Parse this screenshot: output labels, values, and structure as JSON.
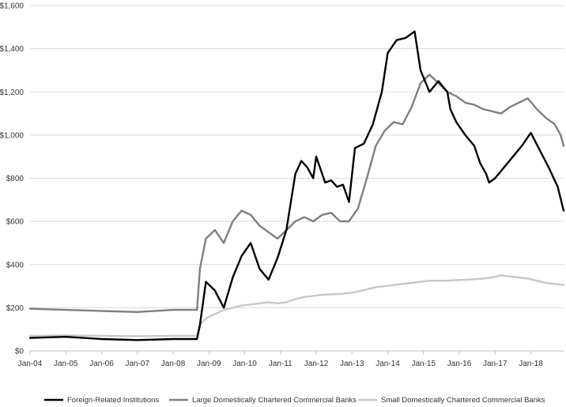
{
  "chart_data": {
    "type": "line",
    "x_tick_labels": [
      "Jan-04",
      "Jan-05",
      "Jan-06",
      "Jan-07",
      "Jan-08",
      "Jan-09",
      "Jan-10",
      "Jan-11",
      "Jan-12",
      "Jan-13",
      "Jan-14",
      "Jan-15",
      "Jan-16",
      "Jan-17",
      "Jan-18"
    ],
    "y_tick_labels": [
      "$0",
      "$200",
      "$400",
      "$600",
      "$800",
      "$1,000",
      "$1,200",
      "$1,400",
      "$1,600"
    ],
    "ylim": [
      0,
      1600
    ],
    "xlim": [
      "Jan-04",
      "Dec-18"
    ],
    "grid": "horizontal",
    "legend_position": "bottom",
    "series": [
      {
        "name": "Foreign-Related Institutions",
        "color": "#000000",
        "x": [
          "Jan-04",
          "Jan-05",
          "Jan-06",
          "Jan-07",
          "Jan-08",
          "Sep-08",
          "Oct-08",
          "Dec-08",
          "Mar-09",
          "Jun-09",
          "Sep-09",
          "Dec-09",
          "Mar-10",
          "Jun-10",
          "Sep-10",
          "Dec-10",
          "Mar-11",
          "Jun-11",
          "Aug-11",
          "Oct-11",
          "Dec-11",
          "Jan-12",
          "Feb-12",
          "Apr-12",
          "Jun-12",
          "Aug-12",
          "Oct-12",
          "Dec-12",
          "Feb-13",
          "May-13",
          "Aug-13",
          "Nov-13",
          "Jan-14",
          "Apr-14",
          "Jul-14",
          "Oct-14",
          "Dec-14",
          "Mar-15",
          "Jun-15",
          "Sep-15",
          "Oct-15",
          "Dec-15",
          "Mar-16",
          "Jun-16",
          "Aug-16",
          "Oct-16",
          "Nov-16",
          "Jan-17",
          "Apr-17",
          "Jul-17",
          "Oct-17",
          "Jan-18",
          "Apr-18",
          "Jul-18",
          "Oct-18",
          "Dec-18"
        ],
        "values": [
          60,
          65,
          55,
          50,
          55,
          55,
          120,
          320,
          280,
          200,
          340,
          440,
          500,
          380,
          330,
          430,
          560,
          820,
          880,
          850,
          800,
          900,
          860,
          780,
          790,
          760,
          770,
          690,
          940,
          960,
          1050,
          1200,
          1380,
          1440,
          1450,
          1480,
          1300,
          1200,
          1250,
          1200,
          1120,
          1060,
          1000,
          950,
          870,
          820,
          780,
          800,
          850,
          900,
          950,
          1010,
          930,
          850,
          760,
          650
        ]
      },
      {
        "name": "Large Domestically Chartered Commercial Banks",
        "color": "#7f7f7f",
        "x": [
          "Jan-04",
          "Jan-05",
          "Jan-06",
          "Jan-07",
          "Jan-08",
          "Sep-08",
          "Oct-08",
          "Dec-08",
          "Mar-09",
          "Jun-09",
          "Sep-09",
          "Dec-09",
          "Mar-10",
          "Jun-10",
          "Sep-10",
          "Dec-10",
          "Mar-11",
          "Jun-11",
          "Sep-11",
          "Dec-11",
          "Mar-12",
          "Jun-12",
          "Sep-12",
          "Dec-12",
          "Mar-13",
          "Jun-13",
          "Sep-13",
          "Dec-13",
          "Mar-14",
          "Jun-14",
          "Sep-14",
          "Dec-14",
          "Mar-15",
          "Jun-15",
          "Sep-15",
          "Dec-15",
          "Mar-16",
          "Jun-16",
          "Sep-16",
          "Dec-16",
          "Mar-17",
          "Jun-17",
          "Sep-17",
          "Dec-17",
          "Mar-18",
          "Jun-18",
          "Sep-18",
          "Nov-18",
          "Dec-18"
        ],
        "values": [
          195,
          190,
          185,
          180,
          190,
          190,
          380,
          520,
          560,
          500,
          600,
          650,
          630,
          580,
          550,
          520,
          560,
          600,
          620,
          600,
          630,
          640,
          600,
          600,
          660,
          800,
          950,
          1020,
          1060,
          1050,
          1130,
          1240,
          1280,
          1240,
          1200,
          1180,
          1150,
          1140,
          1120,
          1110,
          1100,
          1130,
          1150,
          1170,
          1120,
          1080,
          1050,
          1000,
          950
        ]
      },
      {
        "name": "Small Domestically Chartered Commercial Banks",
        "color": "#c8c8c8",
        "x": [
          "Jan-04",
          "Jan-05",
          "Jan-06",
          "Jan-07",
          "Jan-08",
          "Sep-08",
          "Oct-08",
          "Dec-08",
          "Mar-09",
          "Jun-09",
          "Sep-09",
          "Dec-09",
          "Mar-10",
          "Jun-10",
          "Sep-10",
          "Dec-10",
          "Mar-11",
          "Jun-11",
          "Sep-11",
          "Dec-11",
          "Mar-12",
          "Jun-12",
          "Sep-12",
          "Dec-12",
          "Mar-13",
          "Jun-13",
          "Sep-13",
          "Dec-13",
          "Mar-14",
          "Jun-14",
          "Sep-14",
          "Dec-14",
          "Mar-15",
          "Jun-15",
          "Sep-15",
          "Dec-15",
          "Mar-16",
          "Jun-16",
          "Sep-16",
          "Dec-16",
          "Mar-17",
          "Jun-17",
          "Sep-17",
          "Dec-17",
          "Mar-18",
          "Jun-18",
          "Sep-18",
          "Dec-18"
        ],
        "values": [
          70,
          72,
          70,
          68,
          70,
          70,
          120,
          150,
          170,
          190,
          200,
          210,
          215,
          220,
          225,
          220,
          225,
          240,
          250,
          255,
          260,
          262,
          264,
          268,
          275,
          285,
          295,
          300,
          305,
          310,
          315,
          320,
          325,
          325,
          325,
          328,
          330,
          332,
          335,
          340,
          350,
          345,
          340,
          335,
          325,
          315,
          310,
          305
        ]
      }
    ]
  }
}
